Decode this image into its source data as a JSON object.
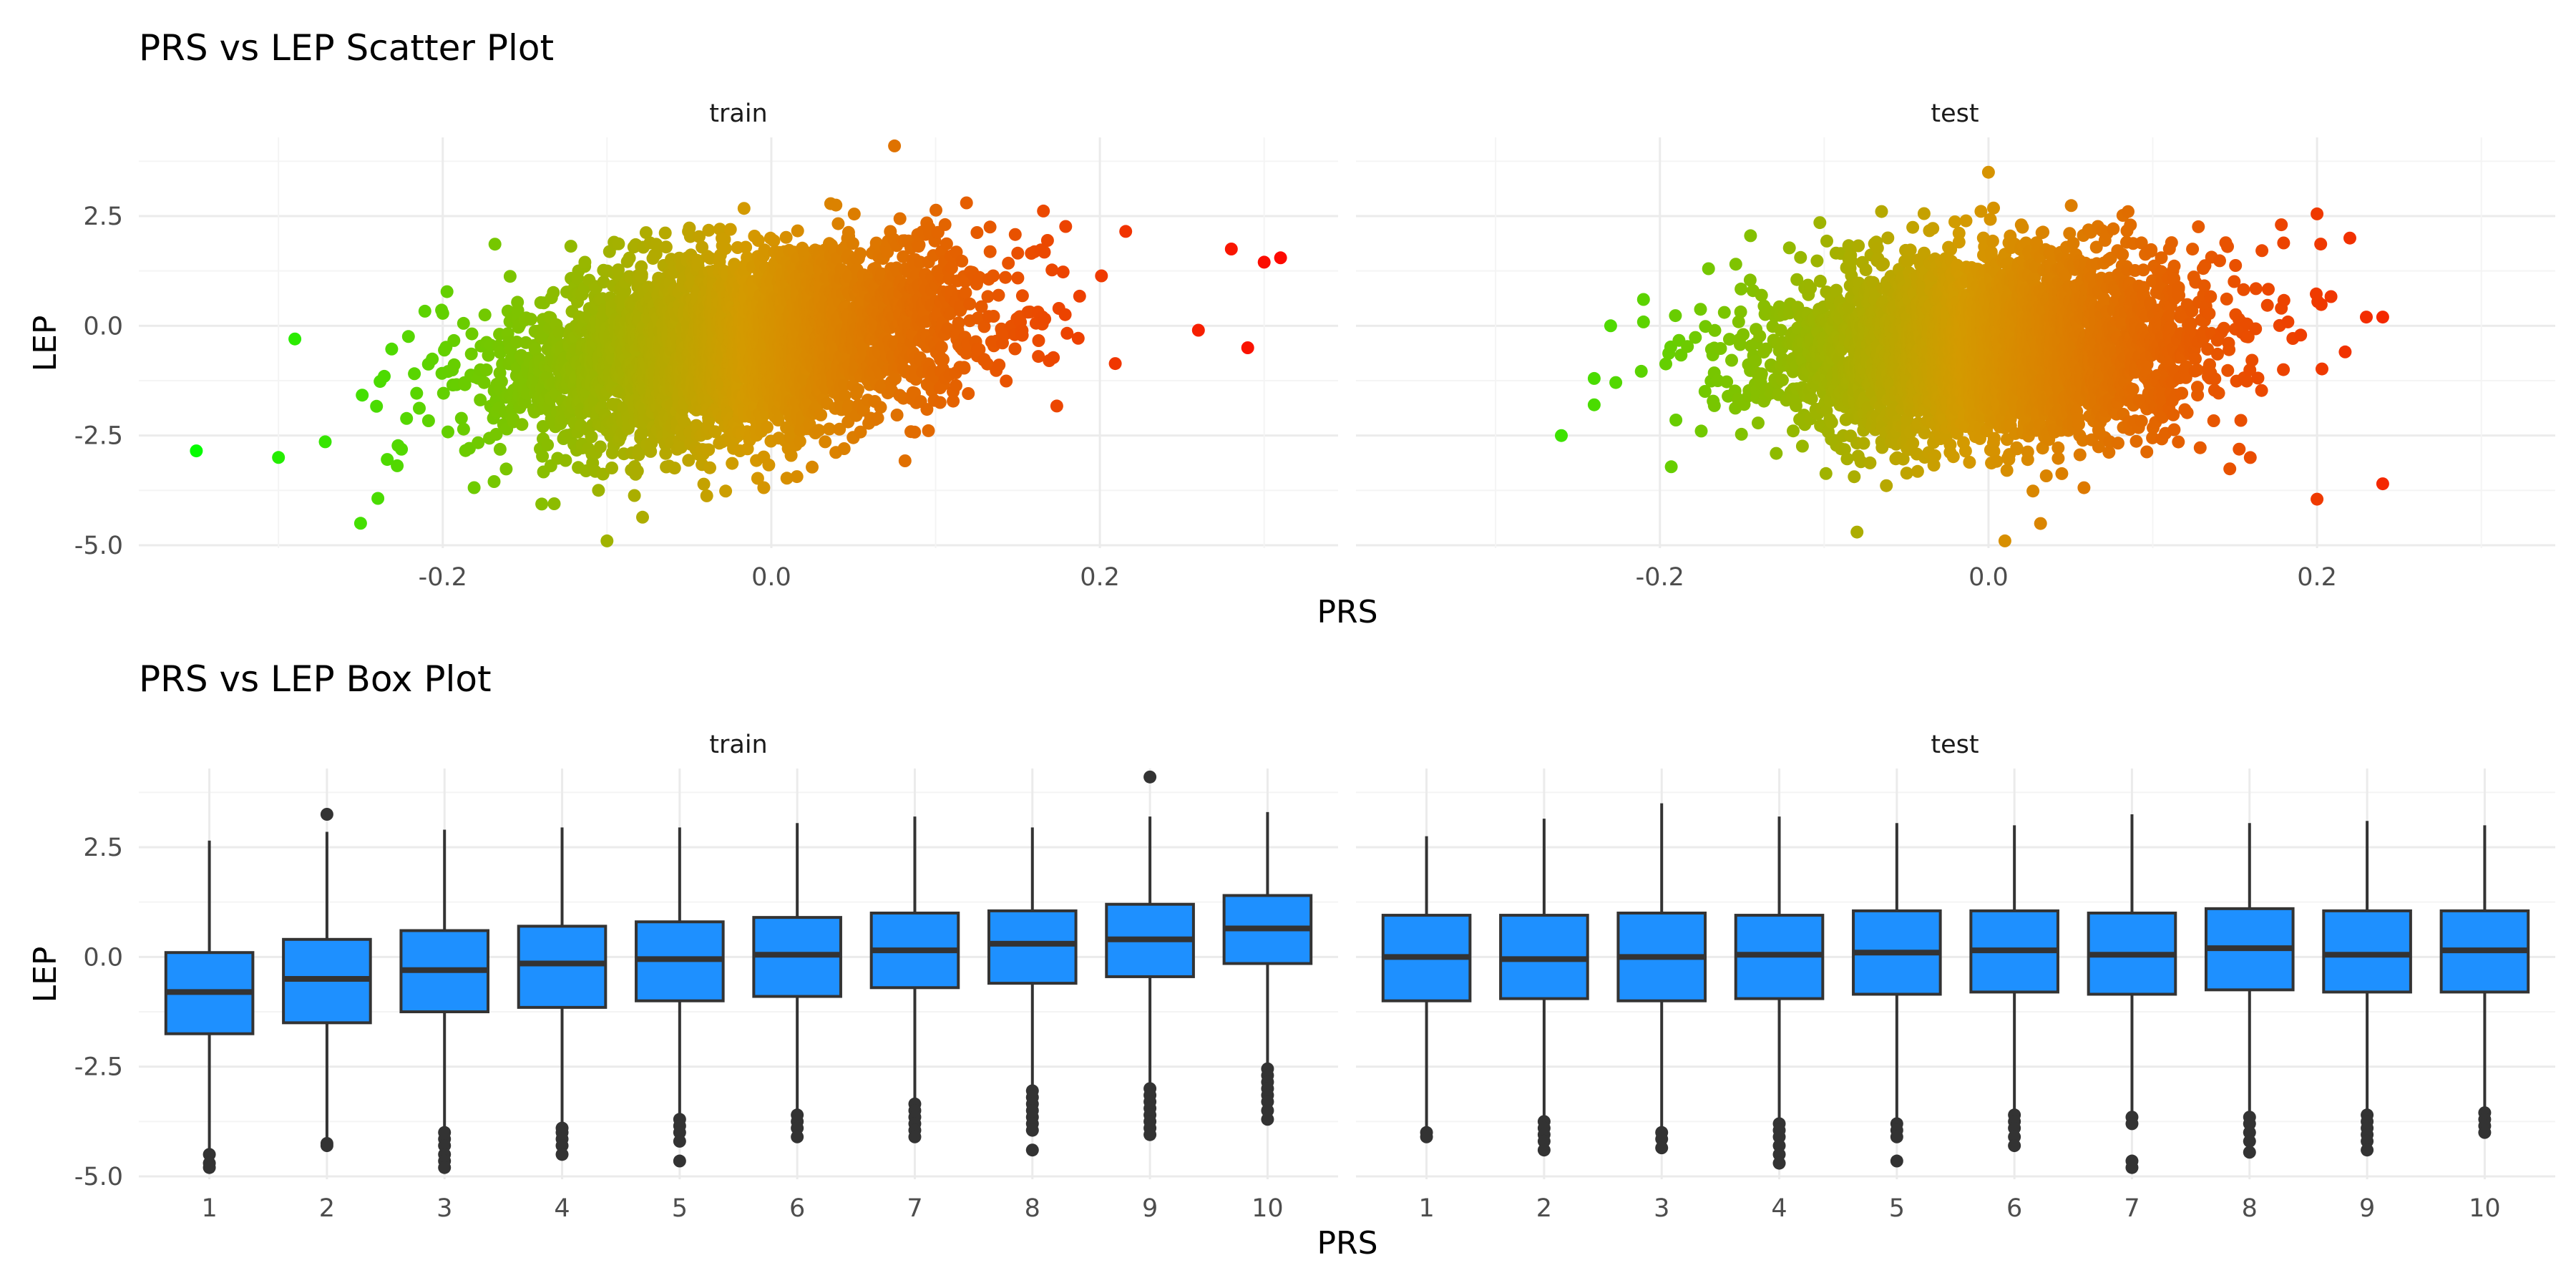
{
  "colors": {
    "grid_major": "#ebebeb",
    "grid_minor": "#f4f4f4",
    "box_fill": "#1e90ff",
    "box_line": "#333333",
    "scatter_low": "#00ff00",
    "scatter_mid": "#d49a00",
    "scatter_high": "#ff0000"
  },
  "chart_data": [
    {
      "type": "scatter",
      "title": "PRS vs LEP Scatter Plot",
      "xlabel": "PRS",
      "ylabel": "LEP",
      "facets": [
        "train",
        "test"
      ],
      "xlim": [
        -0.385,
        0.345
      ],
      "ylim": [
        -5.0,
        4.0
      ],
      "x_ticks": [
        "-0.2",
        "0.0",
        "0.2"
      ],
      "y_ticks": [
        "-5.0",
        "-2.5",
        "0.0",
        "2.5"
      ],
      "grid": true,
      "color_scale": "PRS (green to red)",
      "series": [
        {
          "facet": "train",
          "cloud": {
            "mean_x": -0.02,
            "sd_x": 0.07,
            "mean_y": -0.45,
            "sd_y": 1.1,
            "slope": 4.4
          },
          "notable_points": [
            [
              -0.35,
              -2.85
            ],
            [
              -0.3,
              -3.0
            ],
            [
              -0.29,
              -0.3
            ],
            [
              0.31,
              1.55
            ],
            [
              0.3,
              1.45
            ],
            [
              0.29,
              -0.5
            ],
            [
              0.28,
              1.75
            ],
            [
              0.075,
              4.1
            ],
            [
              -0.25,
              -4.5
            ],
            [
              -0.1,
              -4.9
            ],
            [
              0.26,
              -0.1
            ]
          ]
        },
        {
          "facet": "test",
          "cloud": {
            "mean_x": 0.0,
            "sd_x": 0.065,
            "mean_y": -0.5,
            "sd_y": 1.1,
            "slope": 1.5
          },
          "notable_points": [
            [
              -0.26,
              -2.5
            ],
            [
              -0.24,
              -1.8
            ],
            [
              -0.24,
              -1.2
            ],
            [
              -0.23,
              0.0
            ],
            [
              -0.21,
              0.6
            ],
            [
              0.24,
              -3.6
            ],
            [
              0.24,
              0.2
            ],
            [
              0.23,
              0.2
            ],
            [
              0.2,
              2.55
            ],
            [
              0.2,
              -3.95
            ],
            [
              0.22,
              2.0
            ],
            [
              -0.08,
              -4.7
            ],
            [
              0.0,
              3.5
            ],
            [
              0.01,
              -4.9
            ]
          ]
        }
      ]
    },
    {
      "type": "box",
      "title": "PRS vs LEP Box Plot",
      "xlabel": "PRS",
      "ylabel": "LEP",
      "facets": [
        "train",
        "test"
      ],
      "categories": [
        "1",
        "2",
        "3",
        "4",
        "5",
        "6",
        "7",
        "8",
        "9",
        "10"
      ],
      "ylim": [
        -5.0,
        4.0
      ],
      "y_ticks": [
        "-5.0",
        "-2.5",
        "0.0",
        "2.5"
      ],
      "grid": true,
      "series": [
        {
          "facet": "train",
          "boxes": [
            {
              "q1": -1.75,
              "median": -0.8,
              "q3": 0.1,
              "whisker_low": -4.45,
              "whisker_high": 2.65,
              "outliers": [
                -4.5,
                -4.7,
                -4.8
              ]
            },
            {
              "q1": -1.5,
              "median": -0.5,
              "q3": 0.4,
              "whisker_low": -4.2,
              "whisker_high": 2.85,
              "outliers": [
                -4.25,
                -4.3,
                3.25
              ]
            },
            {
              "q1": -1.25,
              "median": -0.3,
              "q3": 0.6,
              "whisker_low": -3.95,
              "whisker_high": 2.9,
              "outliers": [
                -4.0,
                -4.15,
                -4.3,
                -4.5,
                -4.65,
                -4.8
              ]
            },
            {
              "q1": -1.15,
              "median": -0.15,
              "q3": 0.7,
              "whisker_low": -3.85,
              "whisker_high": 2.95,
              "outliers": [
                -3.9,
                -4.0,
                -4.15,
                -4.3,
                -4.5
              ]
            },
            {
              "q1": -1.0,
              "median": -0.05,
              "q3": 0.8,
              "whisker_low": -3.6,
              "whisker_high": 2.95,
              "outliers": [
                -3.7,
                -3.85,
                -4.0,
                -4.2,
                -4.65
              ]
            },
            {
              "q1": -0.9,
              "median": 0.05,
              "q3": 0.9,
              "whisker_low": -3.55,
              "whisker_high": 3.05,
              "outliers": [
                -3.6,
                -3.75,
                -3.9,
                -4.1
              ]
            },
            {
              "q1": -0.7,
              "median": 0.15,
              "q3": 1.0,
              "whisker_low": -3.3,
              "whisker_high": 3.2,
              "outliers": [
                -3.35,
                -3.5,
                -3.65,
                -3.8,
                -3.95,
                -4.1
              ]
            },
            {
              "q1": -0.6,
              "median": 0.3,
              "q3": 1.05,
              "whisker_low": -3.0,
              "whisker_high": 2.95,
              "outliers": [
                -3.05,
                -3.2,
                -3.35,
                -3.5,
                -3.65,
                -3.8,
                -3.95,
                -4.4
              ]
            },
            {
              "q1": -0.45,
              "median": 0.4,
              "q3": 1.2,
              "whisker_low": -2.95,
              "whisker_high": 3.2,
              "outliers": [
                -3.0,
                -3.15,
                -3.3,
                -3.45,
                -3.6,
                -3.75,
                -3.9,
                -4.05,
                4.1
              ]
            },
            {
              "q1": -0.15,
              "median": 0.65,
              "q3": 1.4,
              "whisker_low": -2.5,
              "whisker_high": 3.3,
              "outliers": [
                -2.55,
                -2.7,
                -2.85,
                -3.0,
                -3.15,
                -3.3,
                -3.5,
                -3.7
              ]
            }
          ]
        },
        {
          "facet": "test",
          "boxes": [
            {
              "q1": -1.0,
              "median": 0.0,
              "q3": 0.95,
              "whisker_low": -3.95,
              "whisker_high": 2.75,
              "outliers": [
                -4.0,
                -4.1
              ]
            },
            {
              "q1": -0.95,
              "median": -0.05,
              "q3": 0.95,
              "whisker_low": -3.7,
              "whisker_high": 3.15,
              "outliers": [
                -3.75,
                -3.9,
                -4.05,
                -4.2,
                -4.4
              ]
            },
            {
              "q1": -1.0,
              "median": 0.0,
              "q3": 1.0,
              "whisker_low": -3.95,
              "whisker_high": 3.5,
              "outliers": [
                -4.0,
                -4.15,
                -4.35
              ]
            },
            {
              "q1": -0.95,
              "median": 0.05,
              "q3": 0.95,
              "whisker_low": -3.75,
              "whisker_high": 3.2,
              "outliers": [
                -3.8,
                -3.95,
                -4.1,
                -4.3,
                -4.5,
                -4.7
              ]
            },
            {
              "q1": -0.85,
              "median": 0.1,
              "q3": 1.05,
              "whisker_low": -3.75,
              "whisker_high": 3.05,
              "outliers": [
                -3.8,
                -3.95,
                -4.1,
                -4.65
              ]
            },
            {
              "q1": -0.8,
              "median": 0.15,
              "q3": 1.05,
              "whisker_low": -3.55,
              "whisker_high": 3.0,
              "outliers": [
                -3.6,
                -3.75,
                -3.9,
                -4.1,
                -4.3
              ]
            },
            {
              "q1": -0.85,
              "median": 0.05,
              "q3": 1.0,
              "whisker_low": -3.6,
              "whisker_high": 3.25,
              "outliers": [
                -3.65,
                -3.8,
                -4.65,
                -4.8
              ]
            },
            {
              "q1": -0.75,
              "median": 0.2,
              "q3": 1.1,
              "whisker_low": -3.6,
              "whisker_high": 3.05,
              "outliers": [
                -3.65,
                -3.8,
                -4.0,
                -4.2,
                -4.45
              ]
            },
            {
              "q1": -0.8,
              "median": 0.05,
              "q3": 1.05,
              "whisker_low": -3.55,
              "whisker_high": 3.1,
              "outliers": [
                -3.6,
                -3.75,
                -3.9,
                -4.05,
                -4.2,
                -4.4
              ]
            },
            {
              "q1": -0.8,
              "median": 0.15,
              "q3": 1.05,
              "whisker_low": -3.5,
              "whisker_high": 3.0,
              "outliers": [
                -3.55,
                -3.7,
                -3.85,
                -4.0
              ]
            }
          ]
        }
      ]
    }
  ]
}
